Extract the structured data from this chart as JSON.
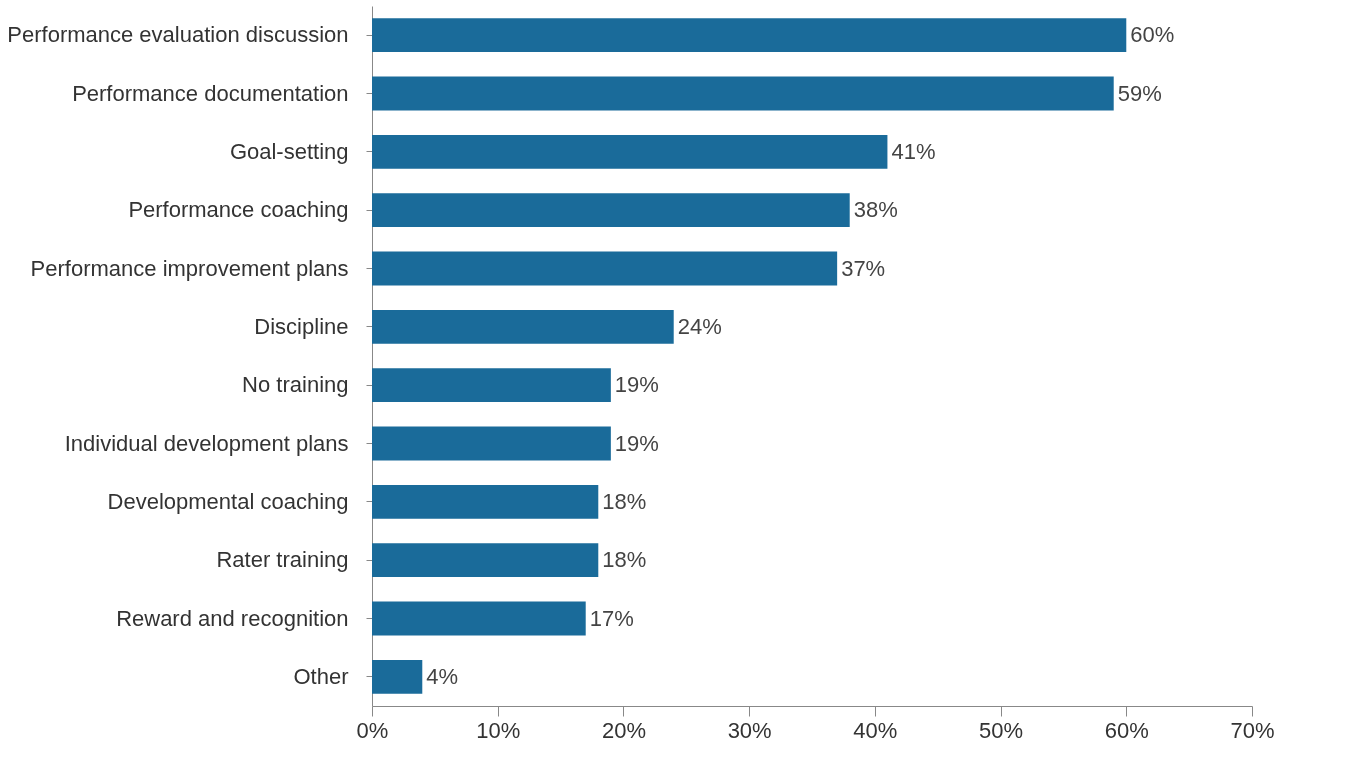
{
  "chart_data": {
    "type": "bar",
    "orientation": "horizontal",
    "categories": [
      "Performance evaluation discussion",
      "Performance documentation",
      "Goal-setting",
      "Performance coaching",
      "Performance improvement plans",
      "Discipline",
      "No training",
      "Individual development plans",
      "Developmental coaching",
      "Rater training",
      "Reward and recognition",
      "Other"
    ],
    "values": [
      60,
      59,
      41,
      38,
      37,
      24,
      19,
      19,
      18,
      18,
      17,
      4
    ],
    "value_labels": [
      "60%",
      "59%",
      "41%",
      "38%",
      "37%",
      "24%",
      "19%",
      "19%",
      "18%",
      "18%",
      "17%",
      "4%"
    ],
    "color": "#1a6b9a",
    "xlim": [
      0,
      70
    ],
    "xticks": [
      {
        "value": 0,
        "label": "0%"
      },
      {
        "value": 10,
        "label": "10%"
      },
      {
        "value": 20,
        "label": "20%"
      },
      {
        "value": 30,
        "label": "30%"
      },
      {
        "value": 40,
        "label": "40%"
      },
      {
        "value": 50,
        "label": "50%"
      },
      {
        "value": 60,
        "label": "60%"
      },
      {
        "value": 70,
        "label": "70%"
      }
    ],
    "grid": false
  }
}
